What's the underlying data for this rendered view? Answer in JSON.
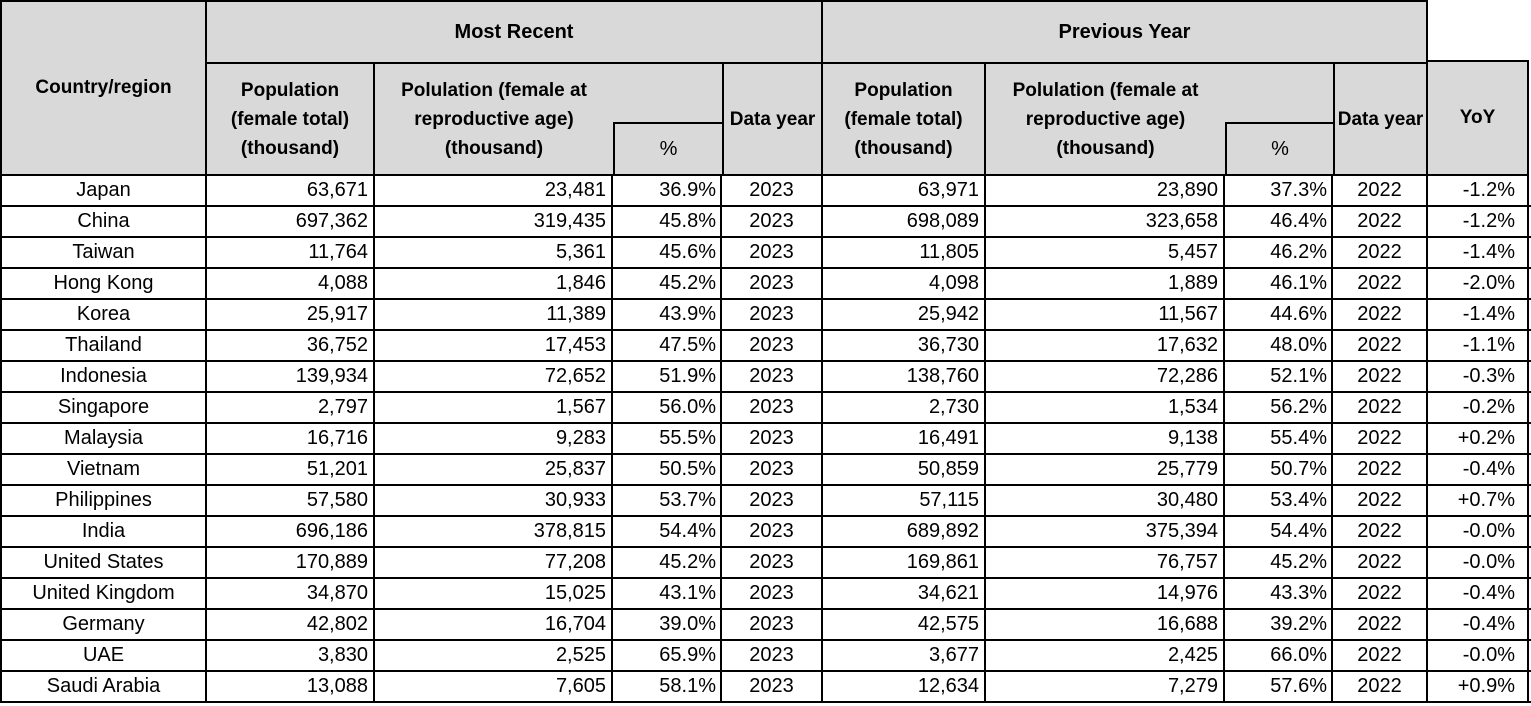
{
  "colors": {
    "header_bg": "#d9d9d9",
    "row_bg": "#ffffff",
    "border": "#000000",
    "text": "#000000"
  },
  "header": {
    "country": "Country/region",
    "groups": {
      "most_recent": "Most Recent",
      "previous_year": "Previous Year"
    },
    "pop_total_lines": [
      "Population",
      "(female total)",
      "(thousand)"
    ],
    "repro_lines": [
      "Polulation (female at",
      "reproductive age)",
      "(thousand)"
    ],
    "pct": "%",
    "data_year": "Data year",
    "yoy": "YoY"
  },
  "chart_data": {
    "type": "table",
    "columns": [
      "Country/region",
      "Most Recent - Population (female total) (thousand)",
      "Most Recent - Polulation (female at reproductive age) (thousand)",
      "Most Recent - %",
      "Most Recent - Data year",
      "Previous Year - Population (female total) (thousand)",
      "Previous Year - Polulation (female at reproductive age) (thousand)",
      "Previous Year - %",
      "Previous Year - Data year",
      "YoY"
    ],
    "rows": [
      {
        "country": "Japan",
        "mr_pop": "63,671",
        "mr_repro": "23,481",
        "mr_pct": "36.9%",
        "mr_year": "2023",
        "py_pop": "63,971",
        "py_repro": "23,890",
        "py_pct": "37.3%",
        "py_year": "2022",
        "yoy": "-1.2%"
      },
      {
        "country": "China",
        "mr_pop": "697,362",
        "mr_repro": "319,435",
        "mr_pct": "45.8%",
        "mr_year": "2023",
        "py_pop": "698,089",
        "py_repro": "323,658",
        "py_pct": "46.4%",
        "py_year": "2022",
        "yoy": "-1.2%"
      },
      {
        "country": "Taiwan",
        "mr_pop": "11,764",
        "mr_repro": "5,361",
        "mr_pct": "45.6%",
        "mr_year": "2023",
        "py_pop": "11,805",
        "py_repro": "5,457",
        "py_pct": "46.2%",
        "py_year": "2022",
        "yoy": "-1.4%"
      },
      {
        "country": "Hong Kong",
        "mr_pop": "4,088",
        "mr_repro": "1,846",
        "mr_pct": "45.2%",
        "mr_year": "2023",
        "py_pop": "4,098",
        "py_repro": "1,889",
        "py_pct": "46.1%",
        "py_year": "2022",
        "yoy": "-2.0%"
      },
      {
        "country": "Korea",
        "mr_pop": "25,917",
        "mr_repro": "11,389",
        "mr_pct": "43.9%",
        "mr_year": "2023",
        "py_pop": "25,942",
        "py_repro": "11,567",
        "py_pct": "44.6%",
        "py_year": "2022",
        "yoy": "-1.4%"
      },
      {
        "country": "Thailand",
        "mr_pop": "36,752",
        "mr_repro": "17,453",
        "mr_pct": "47.5%",
        "mr_year": "2023",
        "py_pop": "36,730",
        "py_repro": "17,632",
        "py_pct": "48.0%",
        "py_year": "2022",
        "yoy": "-1.1%"
      },
      {
        "country": "Indonesia",
        "mr_pop": "139,934",
        "mr_repro": "72,652",
        "mr_pct": "51.9%",
        "mr_year": "2023",
        "py_pop": "138,760",
        "py_repro": "72,286",
        "py_pct": "52.1%",
        "py_year": "2022",
        "yoy": "-0.3%"
      },
      {
        "country": "Singapore",
        "mr_pop": "2,797",
        "mr_repro": "1,567",
        "mr_pct": "56.0%",
        "mr_year": "2023",
        "py_pop": "2,730",
        "py_repro": "1,534",
        "py_pct": "56.2%",
        "py_year": "2022",
        "yoy": "-0.2%"
      },
      {
        "country": "Malaysia",
        "mr_pop": "16,716",
        "mr_repro": "9,283",
        "mr_pct": "55.5%",
        "mr_year": "2023",
        "py_pop": "16,491",
        "py_repro": "9,138",
        "py_pct": "55.4%",
        "py_year": "2022",
        "yoy": "+0.2%"
      },
      {
        "country": "Vietnam",
        "mr_pop": "51,201",
        "mr_repro": "25,837",
        "mr_pct": "50.5%",
        "mr_year": "2023",
        "py_pop": "50,859",
        "py_repro": "25,779",
        "py_pct": "50.7%",
        "py_year": "2022",
        "yoy": "-0.4%"
      },
      {
        "country": "Philippines",
        "mr_pop": "57,580",
        "mr_repro": "30,933",
        "mr_pct": "53.7%",
        "mr_year": "2023",
        "py_pop": "57,115",
        "py_repro": "30,480",
        "py_pct": "53.4%",
        "py_year": "2022",
        "yoy": "+0.7%"
      },
      {
        "country": "India",
        "mr_pop": "696,186",
        "mr_repro": "378,815",
        "mr_pct": "54.4%",
        "mr_year": "2023",
        "py_pop": "689,892",
        "py_repro": "375,394",
        "py_pct": "54.4%",
        "py_year": "2022",
        "yoy": "-0.0%"
      },
      {
        "country": "United States",
        "mr_pop": "170,889",
        "mr_repro": "77,208",
        "mr_pct": "45.2%",
        "mr_year": "2023",
        "py_pop": "169,861",
        "py_repro": "76,757",
        "py_pct": "45.2%",
        "py_year": "2022",
        "yoy": "-0.0%"
      },
      {
        "country": "United Kingdom",
        "mr_pop": "34,870",
        "mr_repro": "15,025",
        "mr_pct": "43.1%",
        "mr_year": "2023",
        "py_pop": "34,621",
        "py_repro": "14,976",
        "py_pct": "43.3%",
        "py_year": "2022",
        "yoy": "-0.4%"
      },
      {
        "country": "Germany",
        "mr_pop": "42,802",
        "mr_repro": "16,704",
        "mr_pct": "39.0%",
        "mr_year": "2023",
        "py_pop": "42,575",
        "py_repro": "16,688",
        "py_pct": "39.2%",
        "py_year": "2022",
        "yoy": "-0.4%"
      },
      {
        "country": "UAE",
        "mr_pop": "3,830",
        "mr_repro": "2,525",
        "mr_pct": "65.9%",
        "mr_year": "2023",
        "py_pop": "3,677",
        "py_repro": "2,425",
        "py_pct": "66.0%",
        "py_year": "2022",
        "yoy": "-0.0%"
      },
      {
        "country": "Saudi Arabia",
        "mr_pop": "13,088",
        "mr_repro": "7,605",
        "mr_pct": "58.1%",
        "mr_year": "2023",
        "py_pop": "12,634",
        "py_repro": "7,279",
        "py_pct": "57.6%",
        "py_year": "2022",
        "yoy": "+0.9%"
      }
    ]
  }
}
